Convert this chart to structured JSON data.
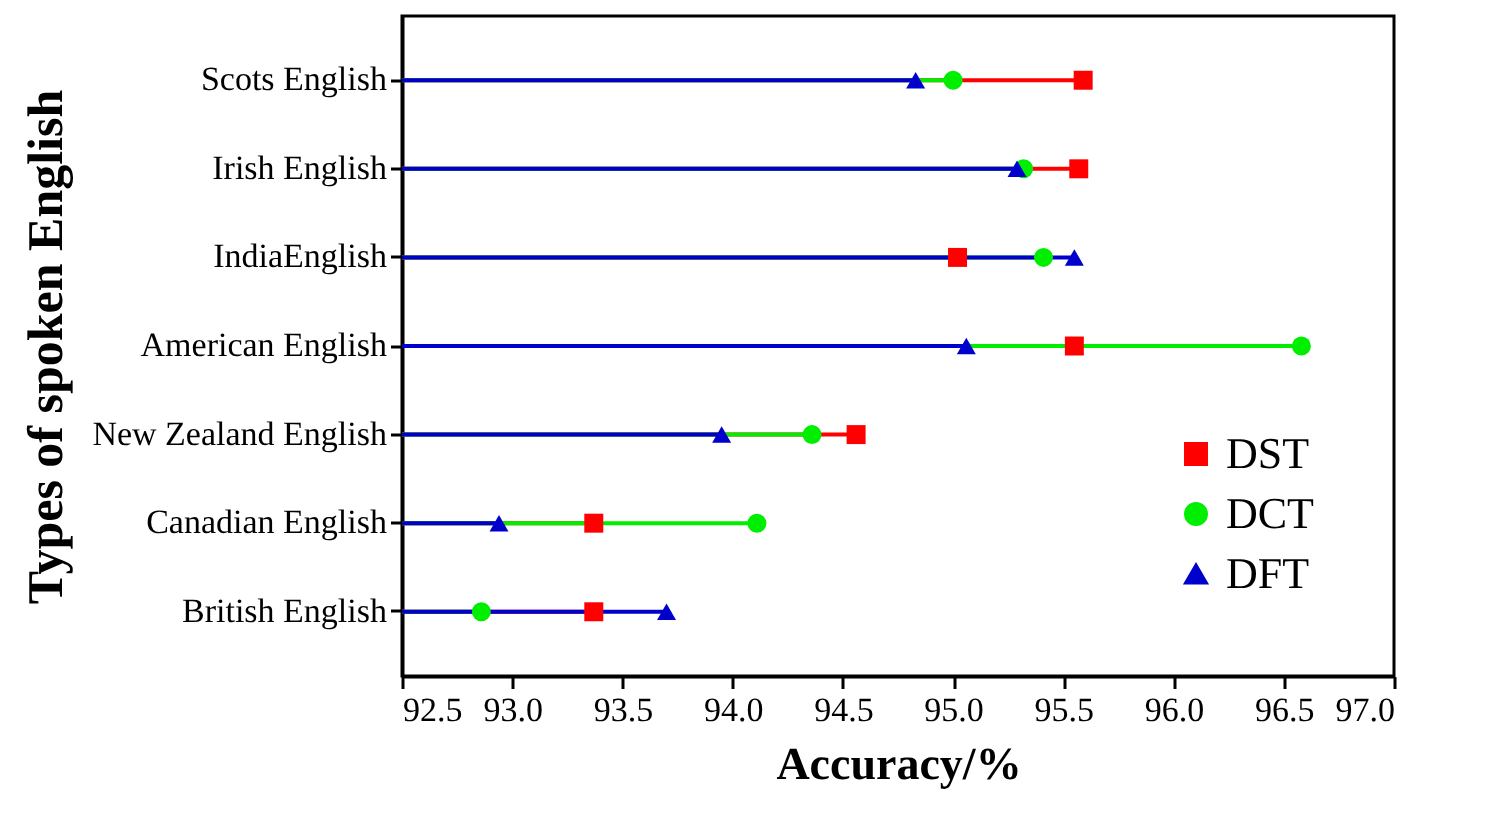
{
  "chart_data": {
    "type": "lollipop",
    "orientation": "horizontal",
    "xlabel": "Accuracy/%",
    "ylabel": "Types of spoken English",
    "categories": [
      "Scots English",
      "Irish English",
      "IndiaEnglish",
      "American English",
      "New Zealand English",
      "Canadian English",
      "British English"
    ],
    "series": [
      {
        "name": "DST",
        "color": "#ff0000",
        "marker": "square",
        "values": [
          95.59,
          95.57,
          95.02,
          95.55,
          94.56,
          93.37,
          93.37
        ]
      },
      {
        "name": "DCT",
        "color": "#00ee00",
        "marker": "circle",
        "values": [
          95.0,
          95.32,
          95.41,
          96.58,
          94.36,
          94.11,
          92.86
        ]
      },
      {
        "name": "DFT",
        "color": "#0000cc",
        "marker": "triangle",
        "values": [
          94.83,
          95.29,
          95.55,
          95.06,
          93.95,
          92.94,
          93.7
        ]
      }
    ],
    "xlim": [
      92.5,
      97.0
    ],
    "xticks": [
      92.5,
      {
        "value": 93,
        "label": "93.0"
      },
      93.5,
      {
        "value": 94,
        "label": "94.0"
      },
      94.5,
      {
        "value": 95,
        "label": "95.0"
      },
      95.5,
      {
        "value": 96,
        "label": "96.0"
      },
      96.5,
      {
        "value": 97,
        "label": "97.0"
      }
    ],
    "legend": "bottom right",
    "grid": false
  }
}
